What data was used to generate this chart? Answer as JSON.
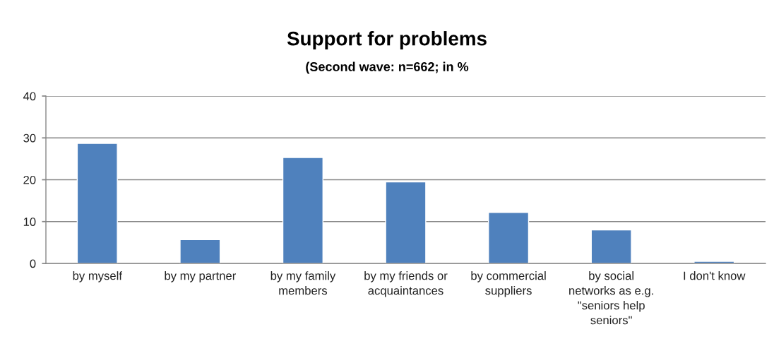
{
  "chart_data": {
    "type": "bar",
    "title": "Support for problems",
    "subtitle": "(Second wave: n=662; in %",
    "categories": [
      "by myself",
      "by my partner",
      "by my family\nmembers",
      "by my friends or\nacquaintances",
      "by commercial\nsuppliers",
      "by social\nnetworks as e.g.\n\"seniors help\nseniors\"",
      "I don't know"
    ],
    "values": [
      28.7,
      5.7,
      25.3,
      19.5,
      12.2,
      8.0,
      0.5
    ],
    "color": "#4f81bd",
    "ylim": [
      0,
      40
    ],
    "yticks": [
      0,
      10,
      20,
      30,
      40
    ],
    "grid": "y"
  }
}
